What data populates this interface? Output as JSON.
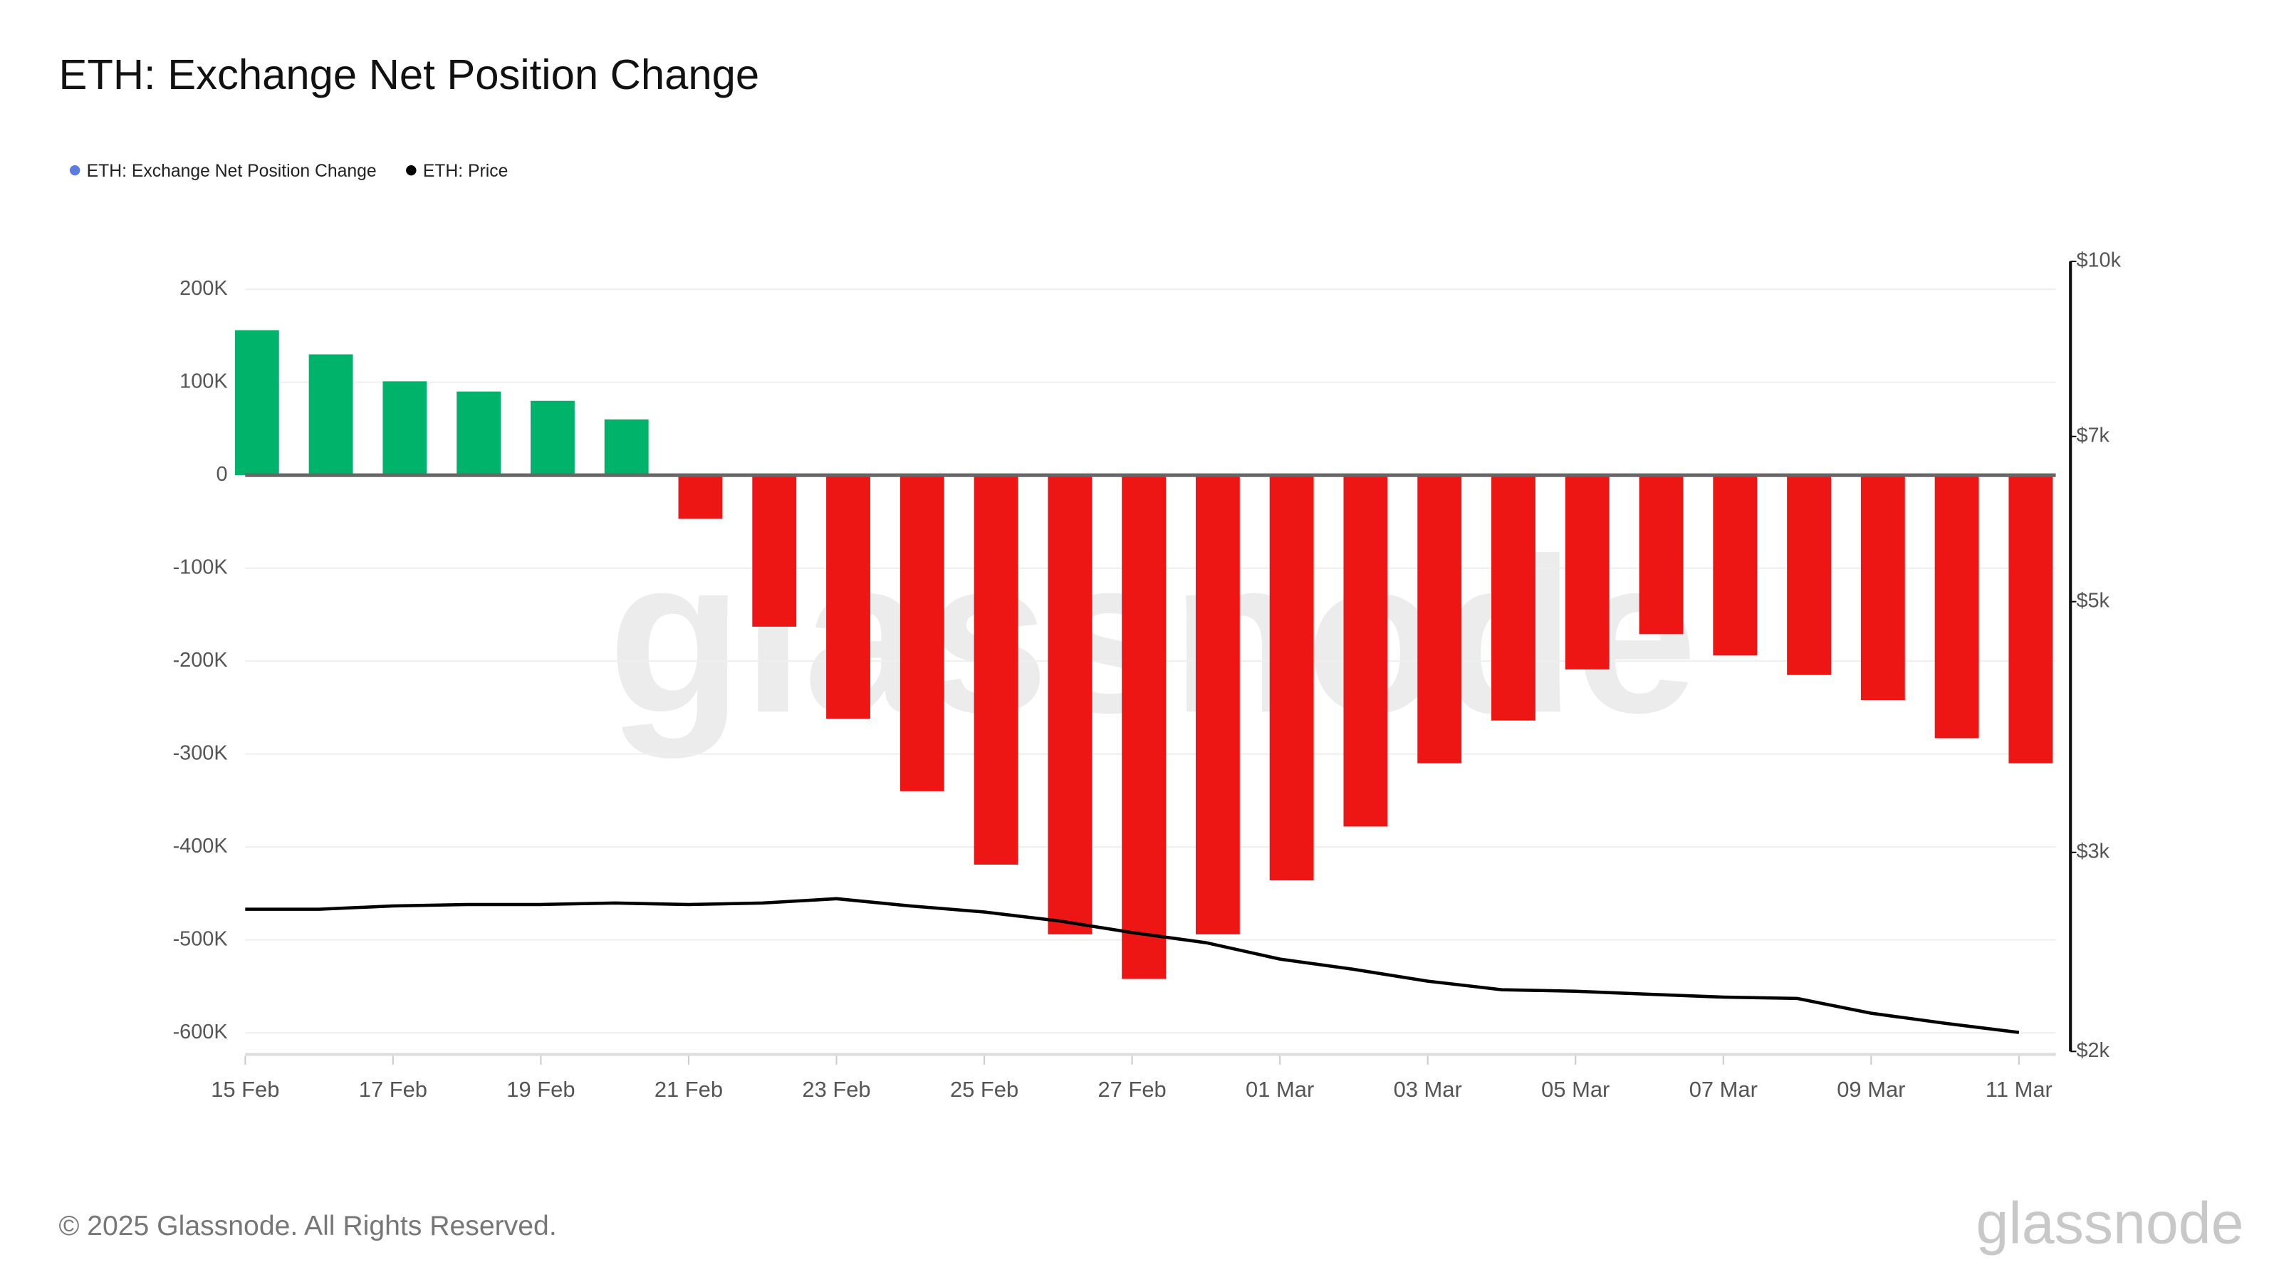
{
  "chart_data": {
    "type": "bar-line",
    "title": "ETH: Exchange Net Position Change",
    "categories": [
      "15 Feb",
      null,
      "17 Feb",
      null,
      "19 Feb",
      null,
      "21 Feb",
      null,
      "23 Feb",
      null,
      "25 Feb",
      null,
      "27 Feb",
      null,
      "01 Mar",
      null,
      "03 Mar",
      null,
      "05 Mar",
      null,
      "07 Mar",
      null,
      "09 Mar",
      null,
      "11 Mar"
    ],
    "series": [
      {
        "name": "ETH: Exchange Net Position Change",
        "type": "bar",
        "color": "#5b7be0",
        "positive_color": "#00b36b",
        "negative_color": "#ee1515",
        "values": [
          156000,
          130000,
          101000,
          90000,
          80000,
          60000,
          -47000,
          -163000,
          -262000,
          -340000,
          -419000,
          -494000,
          -542000,
          -494000,
          -436000,
          -378000,
          -310000,
          -264000,
          -209000,
          -171000,
          -194000,
          -215000,
          -242000,
          -283000,
          -310000
        ]
      },
      {
        "name": "ETH: Price",
        "type": "line",
        "color": "#000000",
        "axis": "y2",
        "values": [
          2672,
          2672,
          2690,
          2698,
          2698,
          2706,
          2698,
          2706,
          2730,
          2690,
          2657,
          2610,
          2548,
          2496,
          2414,
          2364,
          2308,
          2268,
          2261,
          2247,
          2234,
          2228,
          2162,
          2118,
          2079
        ]
      }
    ],
    "ylim": [
      -620000,
      230000
    ],
    "yticks": [
      {
        "value": 200000,
        "label": "200K"
      },
      {
        "value": 100000,
        "label": "100K"
      },
      0,
      {
        "value": -100000,
        "label": "-100K"
      },
      {
        "value": -200000,
        "label": "-200K"
      },
      {
        "value": -300000,
        "label": "-300K"
      },
      {
        "value": -400000,
        "label": "-400K"
      },
      {
        "value": -500000,
        "label": "-500K"
      },
      {
        "value": -600000,
        "label": "-600K"
      }
    ],
    "y2lim": [
      2000,
      10000
    ],
    "y2ticks": [
      {
        "value": 2000,
        "label": "$2k"
      },
      {
        "value": 3000,
        "label": "$3k"
      },
      {
        "value": 5000,
        "label": "$5k"
      },
      {
        "value": 7000,
        "label": "$7k"
      },
      {
        "value": 10000,
        "label": "$10k"
      }
    ],
    "y2log": true,
    "grid": true,
    "legend": "top-left",
    "watermark": "glassnode",
    "footer": "© 2025 Glassnode. All Rights Reserved.",
    "logo": "glassnode"
  }
}
